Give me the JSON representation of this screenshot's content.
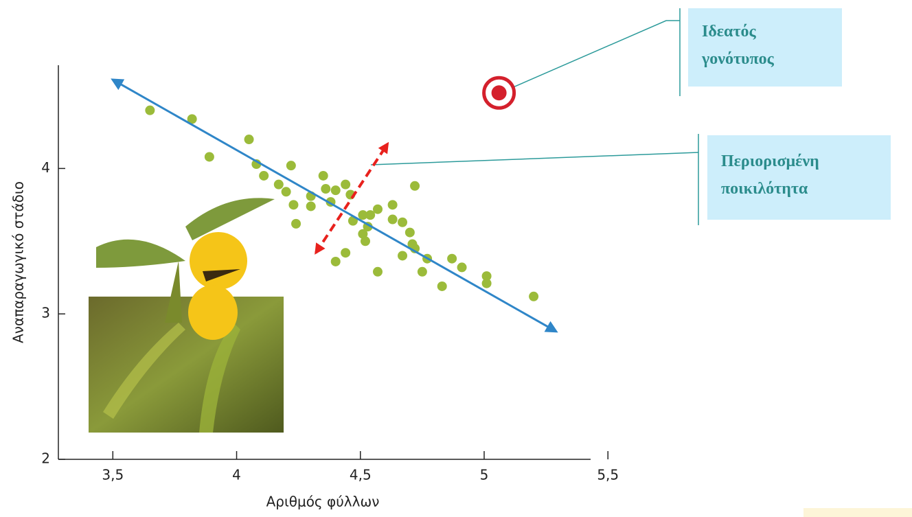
{
  "chart_data": {
    "type": "scatter",
    "x_label": "Αριθμός φύλλων",
    "y_label": "Αναπαραγωγικό στάδιο",
    "color": "#9bbb3a",
    "x": [
      3.65,
      3.82,
      3.89,
      4.05,
      4.08,
      4.11,
      4.17,
      4.2,
      4.22,
      4.23,
      4.24,
      4.3,
      4.3,
      4.35,
      4.36,
      4.38,
      4.4,
      4.44,
      4.46,
      4.47,
      4.4,
      4.44,
      4.51,
      4.51,
      4.52,
      4.53,
      4.54,
      4.57,
      4.57,
      4.63,
      4.63,
      4.67,
      4.67,
      4.7,
      4.71,
      4.72,
      4.72,
      4.75,
      4.77,
      4.83,
      4.87,
      4.91,
      5.01,
      5.01,
      5.2
    ],
    "values": [
      4.4,
      4.34,
      4.08,
      4.2,
      4.03,
      3.95,
      3.89,
      3.84,
      4.02,
      3.75,
      3.62,
      3.81,
      3.74,
      3.95,
      3.86,
      3.77,
      3.85,
      3.89,
      3.82,
      3.64,
      3.36,
      3.42,
      3.68,
      3.55,
      3.5,
      3.6,
      3.68,
      3.72,
      3.29,
      3.75,
      3.65,
      3.63,
      3.4,
      3.56,
      3.48,
      3.88,
      3.45,
      3.29,
      3.38,
      3.19,
      3.38,
      3.32,
      3.26,
      3.21,
      3.12
    ],
    "xlim": [
      3.28,
      5.43
    ],
    "ylim": [
      2,
      4.71
    ],
    "xticks": [
      {
        "value": 3.5,
        "label": "3,5"
      },
      4,
      {
        "value": 4.5,
        "label": "4,5"
      },
      5,
      {
        "value": 5.5,
        "label": "5,5"
      }
    ],
    "yticks": [
      2,
      3,
      4
    ],
    "trend_arrow": {
      "x": [
        3.5,
        5.29
      ],
      "y": [
        4.61,
        2.88
      ],
      "color": "#2f86c8"
    },
    "variation_arrow": {
      "x": [
        4.32,
        4.61
      ],
      "y": [
        3.42,
        4.17
      ],
      "color": "#e8211d"
    },
    "annotations": [
      {
        "lines": [
          "Ιδεατός",
          "γονότυπος"
        ],
        "x": 5.06,
        "y": 4.52
      },
      {
        "lines": [
          "Περιορισμένη",
          "ποικιλότητα"
        ],
        "x": 4.53,
        "y": 4.02
      }
    ]
  }
}
